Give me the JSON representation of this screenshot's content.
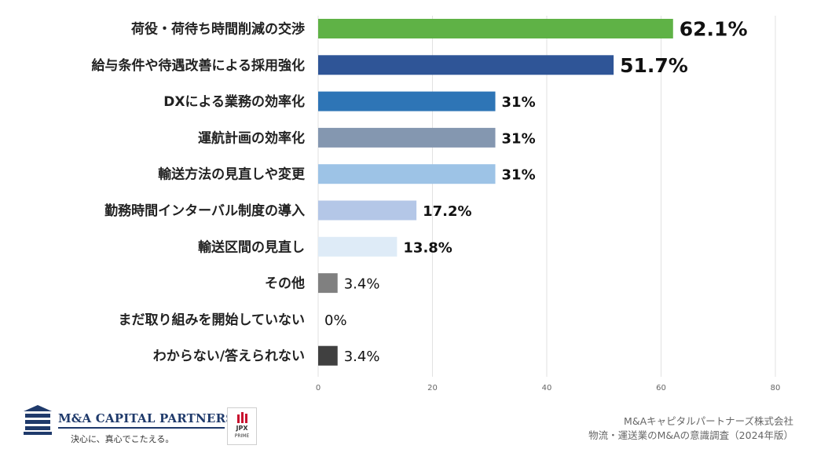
{
  "chart_data": {
    "type": "bar",
    "orientation": "horizontal",
    "categories": [
      "荷役・荷待ち時間削減の交渉",
      "給与条件や待遇改善による採用強化",
      "DXによる業務の効率化",
      "運航計画の効率化",
      "輸送方法の見直しや変更",
      "勤務時間インターバル制度の導入",
      "輸送区間の見直し",
      "その他",
      "まだ取り組みを開始していない",
      "わからない/答えられない"
    ],
    "values": [
      62.1,
      51.7,
      31,
      31,
      31,
      17.2,
      13.8,
      3.4,
      0,
      3.4
    ],
    "value_labels": [
      "62.1%",
      "51.7%",
      "31%",
      "31%",
      "31%",
      "17.2%",
      "13.8%",
      "3.4%",
      "0%",
      "3.4%"
    ],
    "colors": [
      "#5fb246",
      "#2f5597",
      "#2e75b6",
      "#8497b0",
      "#9dc3e6",
      "#b4c7e7",
      "#deebf7",
      "#808080",
      "#808080",
      "#404040"
    ],
    "xlim": [
      0,
      80
    ],
    "xticks": [
      0,
      20,
      40,
      60,
      80
    ],
    "grid": true,
    "title": "",
    "xlabel": "",
    "ylabel": ""
  },
  "footer": {
    "logo_text": "M&A CAPITAL PARTNERS",
    "tagline": "決心に、真心でこたえる。",
    "badge_line1": "JPX",
    "badge_line2": "PRIME",
    "source_line1": "M&Aキャピタルパートナーズ株式会社",
    "source_line2": "物流・運送業のM&Aの意識調査（2024年版）"
  },
  "colors": {
    "brand_navy": "#1f3a6b",
    "jpx_red": "#c8102e"
  }
}
